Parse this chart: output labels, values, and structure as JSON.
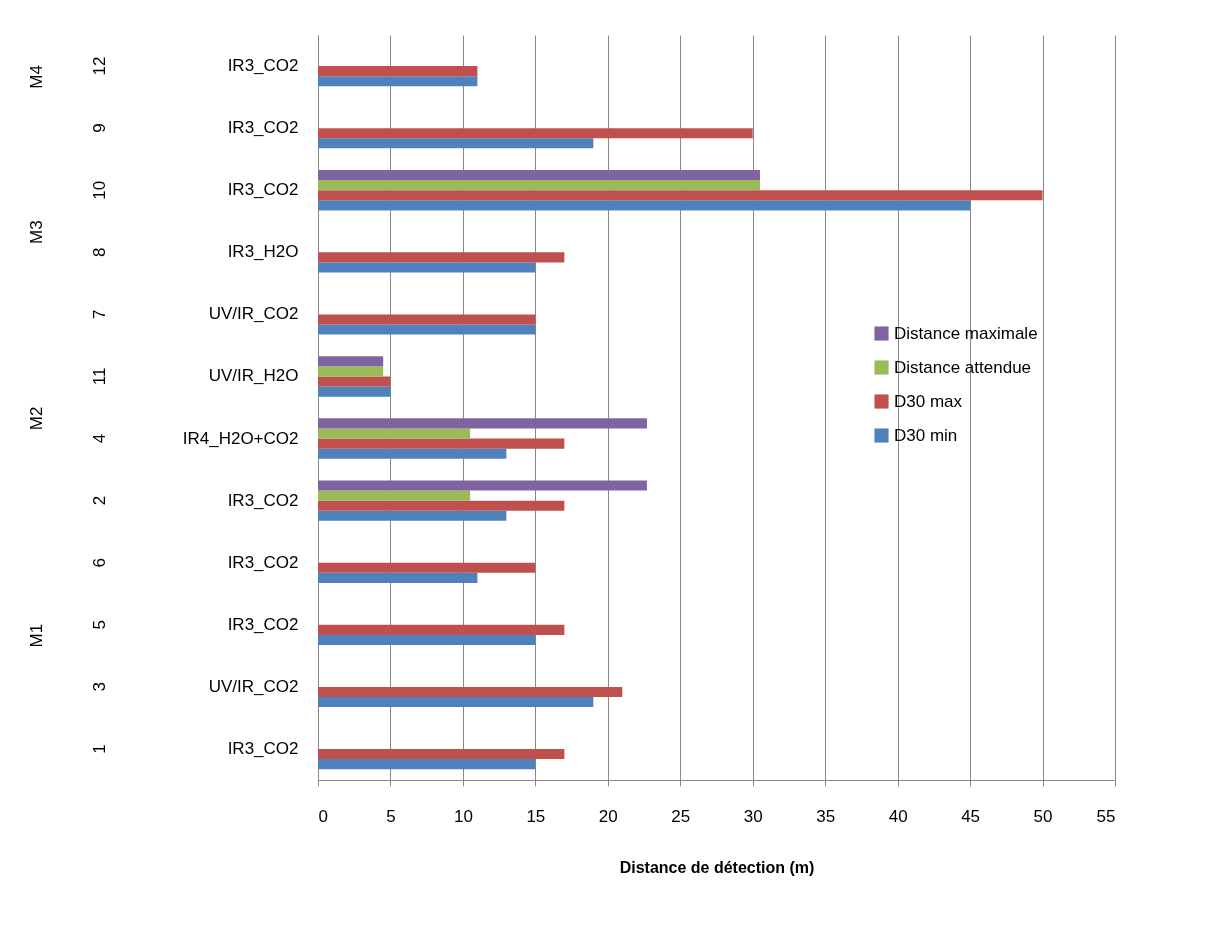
{
  "chart_data": {
    "type": "bar",
    "orientation": "horizontal",
    "xlabel": "Distance de détection (m)",
    "categories": [
      "IR3_CO2",
      "IR3_CO2",
      "IR3_CO2",
      "IR3_H2O",
      "UV/IR_CO2",
      "UV/IR_H2O",
      "IR4_H2O+CO2",
      "IR3_CO2",
      "IR3_CO2",
      "IR3_CO2",
      "UV/IR_CO2",
      "IR3_CO2"
    ],
    "series": [
      {
        "name": "D30 min",
        "color": "#4f81bd",
        "values": [
          11,
          19,
          45,
          15,
          15,
          5,
          13,
          13,
          11,
          15,
          19,
          15
        ]
      },
      {
        "name": "D30 max",
        "color": "#c0504d",
        "values": [
          11,
          30,
          50,
          17,
          15,
          5,
          17,
          17,
          15,
          17,
          21,
          17
        ]
      },
      {
        "name": "Distance attendue",
        "color": "#9bbb59",
        "values": [
          null,
          null,
          30.5,
          null,
          null,
          4.5,
          10.5,
          10.5,
          null,
          null,
          null,
          null
        ]
      },
      {
        "name": "Distance maximale",
        "color": "#8064a2",
        "values": [
          null,
          null,
          30.5,
          null,
          null,
          4.5,
          22.7,
          22.7,
          null,
          null,
          null,
          null
        ]
      }
    ],
    "xlim": [
      0,
      55
    ],
    "xticks": [
      0,
      5,
      10,
      15,
      20,
      25,
      30,
      35,
      40,
      45,
      50,
      55
    ],
    "grid": "x",
    "legend": "right",
    "annotations": [
      "12",
      "9",
      "10",
      "8",
      "7",
      "11",
      "4",
      "2",
      "6",
      "5",
      "3",
      "1",
      "M4",
      "M3",
      "M2",
      "M1"
    ]
  }
}
